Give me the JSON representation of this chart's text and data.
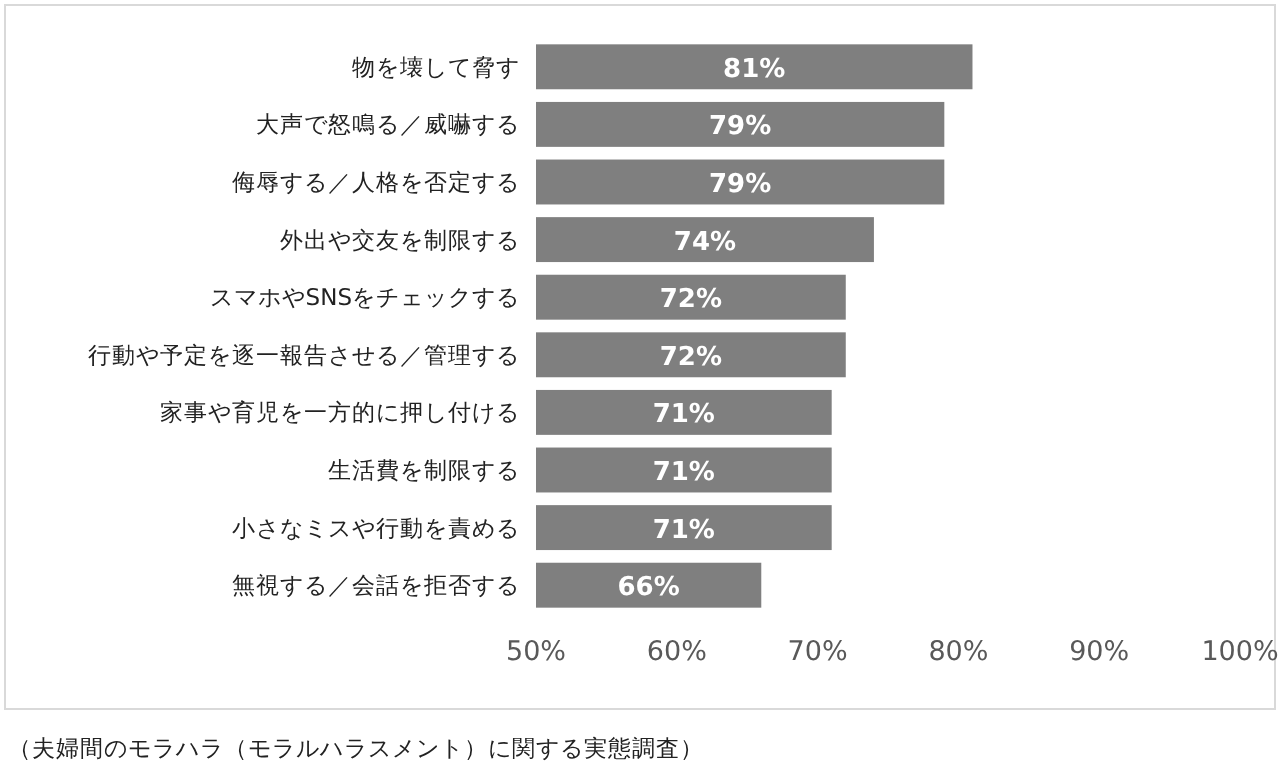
{
  "chart_data": {
    "type": "bar",
    "orientation": "horizontal",
    "categories": [
      "物を壊して脅す",
      "大声で怒鳴る／威嚇する",
      "侮辱する／人格を否定する",
      "外出や交友を制限する",
      "スマホやSNSをチェックする",
      "行動や予定を逐一報告させる／管理する",
      "家事や育児を一方的に押し付ける",
      "生活費を制限する",
      "小さなミスや行動を責める",
      "無視する／会話を拒否する"
    ],
    "values": [
      81,
      79,
      79,
      74,
      72,
      72,
      71,
      71,
      71,
      66
    ],
    "value_labels": [
      "81%",
      "79%",
      "79%",
      "74%",
      "72%",
      "72%",
      "71%",
      "71%",
      "71%",
      "66%"
    ],
    "color": "#7f7f7f",
    "xlim": [
      50,
      100
    ],
    "xticks": [
      {
        "value": 50,
        "label": "50%"
      },
      {
        "value": 60,
        "label": "60%"
      },
      {
        "value": 70,
        "label": "70%"
      },
      {
        "value": 80,
        "label": "80%"
      },
      {
        "value": 90,
        "label": "90%"
      },
      {
        "value": 100,
        "label": "100%"
      }
    ],
    "annotations": [
      "（夫婦間のモラハラ（モラルハラスメント）に関する実態調査）"
    ]
  }
}
